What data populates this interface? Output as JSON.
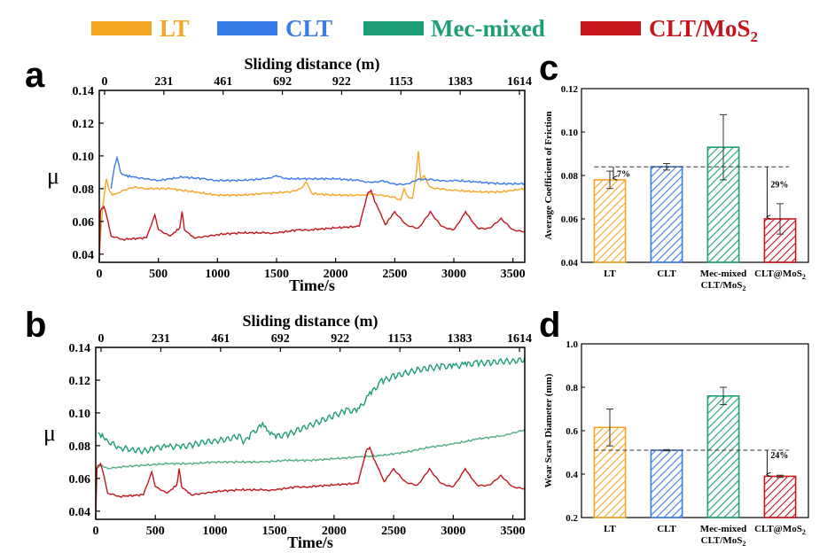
{
  "legend": [
    {
      "label": "LT",
      "color": "#F5A623"
    },
    {
      "label": "CLT",
      "color": "#3A7BEA"
    },
    {
      "label": "Mec-mixed",
      "color": "#1E9E76"
    },
    {
      "label": "CLT/MoS",
      "sub": "2",
      "color": "#C4161C"
    }
  ],
  "chart_data": [
    {
      "id": "a",
      "type": "line",
      "panel_label": "a",
      "xlabel": "Time/s",
      "ylabel": "μ",
      "top_xlabel": "Sliding distance (m)",
      "top_ticks": [
        "0",
        "231",
        "461",
        "692",
        "922",
        "1153",
        "1383",
        "1614"
      ],
      "xlim": [
        0,
        3600
      ],
      "ylim": [
        0.035,
        0.14
      ],
      "xticks": [
        0,
        500,
        1000,
        1500,
        2000,
        2500,
        3000,
        3500
      ],
      "yticks": [
        0.04,
        0.06,
        0.08,
        0.1,
        0.12,
        0.14
      ],
      "series": [
        {
          "name": "LT",
          "color": "#F5A623",
          "x": [
            0,
            30,
            60,
            80,
            110,
            150,
            200,
            300,
            400,
            600,
            800,
            1000,
            1200,
            1400,
            1600,
            1700,
            1750,
            1780,
            1800,
            2000,
            2200,
            2300,
            2400,
            2500,
            2550,
            2580,
            2600,
            2650,
            2680,
            2700,
            2720,
            2750,
            2800,
            2900,
            3000,
            3200,
            3400,
            3600
          ],
          "y": [
            0.04,
            0.07,
            0.086,
            0.08,
            0.076,
            0.077,
            0.079,
            0.081,
            0.08,
            0.08,
            0.078,
            0.076,
            0.076,
            0.077,
            0.078,
            0.08,
            0.084,
            0.08,
            0.077,
            0.076,
            0.076,
            0.077,
            0.076,
            0.075,
            0.073,
            0.08,
            0.076,
            0.074,
            0.088,
            0.103,
            0.085,
            0.088,
            0.081,
            0.08,
            0.079,
            0.078,
            0.078,
            0.08
          ]
        },
        {
          "name": "CLT",
          "color": "#3A7BEA",
          "x": [
            100,
            130,
            150,
            180,
            220,
            300,
            400,
            500,
            700,
            900,
            1000,
            1200,
            1400,
            1500,
            1600,
            1800,
            2000,
            2200,
            2300,
            2400,
            2500,
            2600,
            2700,
            2800,
            2900,
            3000,
            3200,
            3400,
            3600
          ],
          "y": [
            0.08,
            0.094,
            0.099,
            0.09,
            0.088,
            0.087,
            0.086,
            0.085,
            0.087,
            0.086,
            0.085,
            0.085,
            0.086,
            0.088,
            0.086,
            0.086,
            0.086,
            0.085,
            0.084,
            0.085,
            0.083,
            0.083,
            0.086,
            0.086,
            0.085,
            0.085,
            0.084,
            0.083,
            0.083
          ]
        },
        {
          "name": "CLT/MoS2",
          "color": "#C4161C",
          "x": [
            0,
            10,
            20,
            40,
            60,
            100,
            200,
            400,
            450,
            470,
            500,
            600,
            680,
            700,
            720,
            800,
            900,
            1000,
            1200,
            1400,
            1500,
            1700,
            1800,
            2000,
            2200,
            2270,
            2300,
            2330,
            2380,
            2420,
            2500,
            2600,
            2700,
            2800,
            2900,
            3000,
            3100,
            3200,
            3300,
            3400,
            3500,
            3600
          ],
          "y": [
            0.035,
            0.066,
            0.068,
            0.069,
            0.064,
            0.051,
            0.049,
            0.05,
            0.06,
            0.064,
            0.055,
            0.051,
            0.056,
            0.066,
            0.055,
            0.05,
            0.051,
            0.052,
            0.053,
            0.053,
            0.053,
            0.055,
            0.055,
            0.056,
            0.057,
            0.077,
            0.079,
            0.072,
            0.065,
            0.058,
            0.066,
            0.058,
            0.056,
            0.066,
            0.057,
            0.055,
            0.066,
            0.056,
            0.056,
            0.062,
            0.055,
            0.054
          ]
        }
      ]
    },
    {
      "id": "b",
      "type": "line",
      "panel_label": "b",
      "xlabel": "Time/s",
      "ylabel": "μ",
      "top_xlabel": "Sliding distance (m)",
      "top_ticks": [
        "0",
        "231",
        "461",
        "692",
        "922",
        "1153",
        "1383",
        "1614"
      ],
      "xlim": [
        0,
        3600
      ],
      "ylim": [
        0.035,
        0.14
      ],
      "xticks": [
        0,
        500,
        1000,
        1500,
        2000,
        2500,
        3000,
        3500
      ],
      "yticks": [
        0.04,
        0.06,
        0.08,
        0.1,
        0.12,
        0.14
      ],
      "series": [
        {
          "name": "Mec-mixed (noisy)",
          "color": "#1E9E76",
          "x": [
            20,
            100,
            200,
            300,
            400,
            500,
            600,
            700,
            800,
            900,
            1000,
            1100,
            1200,
            1250,
            1300,
            1400,
            1450,
            1500,
            1600,
            1700,
            1800,
            1900,
            2000,
            2100,
            2200,
            2300,
            2400,
            2500,
            2600,
            2700,
            2800,
            2900,
            3000,
            3100,
            3200,
            3300,
            3400,
            3500,
            3600
          ],
          "y": [
            0.088,
            0.083,
            0.079,
            0.078,
            0.077,
            0.079,
            0.08,
            0.08,
            0.081,
            0.083,
            0.084,
            0.085,
            0.087,
            0.083,
            0.088,
            0.094,
            0.089,
            0.087,
            0.088,
            0.091,
            0.094,
            0.097,
            0.1,
            0.103,
            0.103,
            0.113,
            0.121,
            0.124,
            0.126,
            0.128,
            0.129,
            0.13,
            0.13,
            0.131,
            0.132,
            0.132,
            0.133,
            0.133,
            0.134
          ]
        },
        {
          "name": "Mec-mixed (smooth)",
          "color": "#4FAE82",
          "x": [
            0,
            50,
            100,
            200,
            400,
            600,
            800,
            1000,
            1200,
            1400,
            1600,
            1800,
            2000,
            2200,
            2400,
            2600,
            2800,
            3000,
            3200,
            3400,
            3500,
            3600
          ],
          "y": [
            0.066,
            0.068,
            0.066,
            0.067,
            0.068,
            0.069,
            0.069,
            0.07,
            0.07,
            0.07,
            0.071,
            0.071,
            0.072,
            0.073,
            0.074,
            0.076,
            0.079,
            0.081,
            0.084,
            0.086,
            0.088,
            0.09
          ]
        },
        {
          "name": "CLT/MoS2",
          "color": "#C4161C",
          "x": [
            0,
            10,
            20,
            40,
            60,
            100,
            200,
            400,
            450,
            470,
            500,
            600,
            680,
            700,
            720,
            800,
            900,
            1000,
            1200,
            1400,
            1500,
            1700,
            1800,
            2000,
            2200,
            2270,
            2300,
            2330,
            2380,
            2420,
            2500,
            2600,
            2700,
            2800,
            2900,
            3000,
            3100,
            3200,
            3300,
            3400,
            3500,
            3600
          ],
          "y": [
            0.035,
            0.066,
            0.068,
            0.069,
            0.064,
            0.051,
            0.049,
            0.05,
            0.06,
            0.064,
            0.055,
            0.051,
            0.056,
            0.066,
            0.055,
            0.05,
            0.051,
            0.052,
            0.053,
            0.053,
            0.053,
            0.055,
            0.055,
            0.056,
            0.057,
            0.077,
            0.079,
            0.072,
            0.065,
            0.058,
            0.066,
            0.058,
            0.056,
            0.066,
            0.057,
            0.055,
            0.066,
            0.056,
            0.056,
            0.062,
            0.055,
            0.054
          ]
        }
      ]
    },
    {
      "id": "c",
      "type": "bar",
      "panel_label": "c",
      "ylabel": "Average Coefficient of Friction",
      "ylim": [
        0.04,
        0.12
      ],
      "yticks": [
        "0.04",
        "0.06",
        "0.08",
        "0.10",
        "0.12"
      ],
      "categories": [
        {
          "line1": "LT",
          "line2": ""
        },
        {
          "line1": "CLT",
          "line2": ""
        },
        {
          "line1": "Mec-mixed",
          "line2": "CLT/MoS",
          "sub": "2"
        },
        {
          "line1": "CLT@MoS",
          "line1_sub": "2",
          "line2": ""
        }
      ],
      "values": [
        0.078,
        0.084,
        0.093,
        0.06
      ],
      "errors": [
        0.004,
        0.0015,
        0.015,
        0.007
      ],
      "colors": [
        "#F5A623",
        "#3A7BEA",
        "#1E9E76",
        "#C4161C"
      ],
      "reference": 0.084,
      "annotations": [
        {
          "text": "7%",
          "bar": 0
        },
        {
          "text": "29%",
          "bar": 3
        }
      ]
    },
    {
      "id": "d",
      "type": "bar",
      "panel_label": "d",
      "ylabel": "Wear Scars Diameter (mm)",
      "ylim": [
        0.2,
        1.0
      ],
      "yticks": [
        "0.2",
        "0.4",
        "0.6",
        "0.8",
        "1.0"
      ],
      "categories": [
        {
          "line1": "LT",
          "line2": ""
        },
        {
          "line1": "CLT",
          "line2": ""
        },
        {
          "line1": "Mec-mixed",
          "line2": "CLT/MoS",
          "sub": "2"
        },
        {
          "line1": "CLT@MoS",
          "line1_sub": "2",
          "line2": ""
        }
      ],
      "values": [
        0.615,
        0.51,
        0.76,
        0.39
      ],
      "errors": [
        0.085,
        0.003,
        0.04,
        0.005
      ],
      "colors": [
        "#F5A623",
        "#3A7BEA",
        "#1E9E76",
        "#C4161C"
      ],
      "reference": 0.51,
      "annotations": [
        {
          "text": "24%",
          "bar": 3
        }
      ]
    }
  ]
}
